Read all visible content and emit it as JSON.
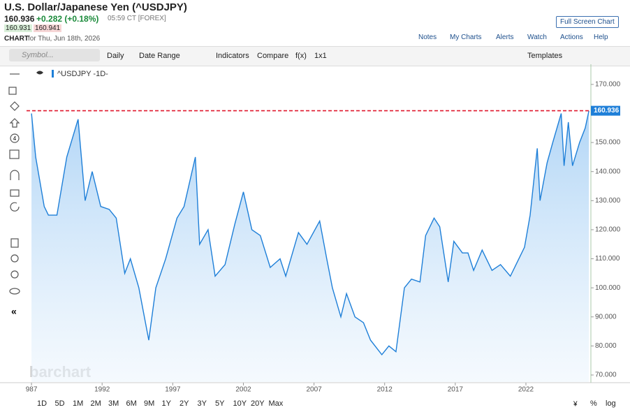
{
  "header": {
    "title": "U.S. Dollar/Japanese Yen (^USDJPY)",
    "last": "160.936",
    "change": "+0.282 (+0.18%)",
    "time": "05:59 CT [FOREX]",
    "bid": "160.931",
    "ask": "160.941",
    "chart_label": "CHART",
    "chart_date": "for Thu, Jun 18th, 2026",
    "full_screen": "Full Screen Chart",
    "links": [
      "Notes",
      "My Charts",
      "Alerts",
      "Watch",
      "Actions",
      "Help"
    ]
  },
  "toolbar": {
    "symbol_placeholder": "Symbol...",
    "items": [
      "Daily",
      "Date Range",
      "Indicators",
      "Compare",
      "f(x)",
      "1x1"
    ],
    "templates": "Templates"
  },
  "left_tools": {
    "number_icon": "4"
  },
  "watermark": "barchart",
  "ranges": [
    "1D",
    "5D",
    "1M",
    "2M",
    "3M",
    "6M",
    "9M",
    "1Y",
    "2Y",
    "3Y",
    "5Y",
    "10Y",
    "20Y",
    "Max"
  ],
  "scale_buttons": [
    "%",
    "log"
  ],
  "chart_data": {
    "type": "area",
    "title": "^USDJPY -1D-",
    "color": "#1e7fd8",
    "grid": false,
    "x": [
      1987.0,
      1987.3,
      1987.9,
      1988.2,
      1988.8,
      1989.5,
      1990.3,
      1990.8,
      1991.3,
      1991.9,
      1992.5,
      1993.0,
      1993.6,
      1994.0,
      1994.6,
      1995.3,
      1995.8,
      1996.5,
      1997.3,
      1997.8,
      1998.6,
      1998.9,
      1999.5,
      2000.0,
      2000.7,
      2001.4,
      2002.0,
      2002.6,
      2003.2,
      2003.9,
      2004.6,
      2005.0,
      2005.9,
      2006.5,
      2007.4,
      2007.9,
      2008.3,
      2008.9,
      2009.3,
      2009.9,
      2010.5,
      2011.0,
      2011.8,
      2012.3,
      2012.8,
      2013.4,
      2013.9,
      2014.5,
      2014.9,
      2015.5,
      2015.9,
      2016.5,
      2016.9,
      2017.5,
      2017.9,
      2018.3,
      2018.9,
      2019.6,
      2020.2,
      2020.9,
      2021.5,
      2021.9,
      2022.3,
      2022.8,
      2023.0,
      2023.5,
      2023.9,
      2024.5,
      2024.7,
      2025.0,
      2025.3,
      2025.8,
      2026.2,
      2026.46
    ],
    "values": [
      160,
      145,
      128,
      125,
      125,
      145,
      158,
      130,
      140,
      128,
      127,
      124,
      105,
      110,
      100,
      82,
      100,
      110,
      124,
      128,
      145,
      115,
      120,
      104,
      108,
      122,
      133,
      120,
      118,
      107,
      110,
      104,
      119,
      115,
      123,
      110,
      100,
      90,
      98,
      90,
      88,
      82,
      77,
      80,
      78,
      100,
      103,
      102,
      118,
      124,
      121,
      102,
      116,
      112,
      112,
      106,
      113,
      106,
      108,
      104,
      110,
      114,
      125,
      148,
      130,
      143,
      150,
      160,
      142,
      157,
      142,
      150,
      155,
      160.936
    ],
    "last_price": 160.936,
    "xlim": [
      1986.65,
      2026.55
    ],
    "xticks": [
      {
        "value": 1987,
        "label": "987"
      },
      1992,
      1997,
      2002,
      2007,
      2012,
      2017,
      2022
    ],
    "ylim": [
      67.6,
      177.9
    ],
    "yticks": [
      {
        "value": 70,
        "label": "70.000"
      },
      {
        "value": 80,
        "label": "80.000"
      },
      {
        "value": 90,
        "label": "90.000"
      },
      {
        "value": 100,
        "label": "100.000"
      },
      {
        "value": 110,
        "label": "110.000"
      },
      {
        "value": 120,
        "label": "120.000"
      },
      {
        "value": 130,
        "label": "130.000"
      },
      {
        "value": 140,
        "label": "140.000"
      },
      {
        "value": 150,
        "label": "150.000"
      },
      {
        "value": 160,
        "label": "160.000"
      },
      {
        "value": 170,
        "label": "170.000"
      }
    ]
  }
}
